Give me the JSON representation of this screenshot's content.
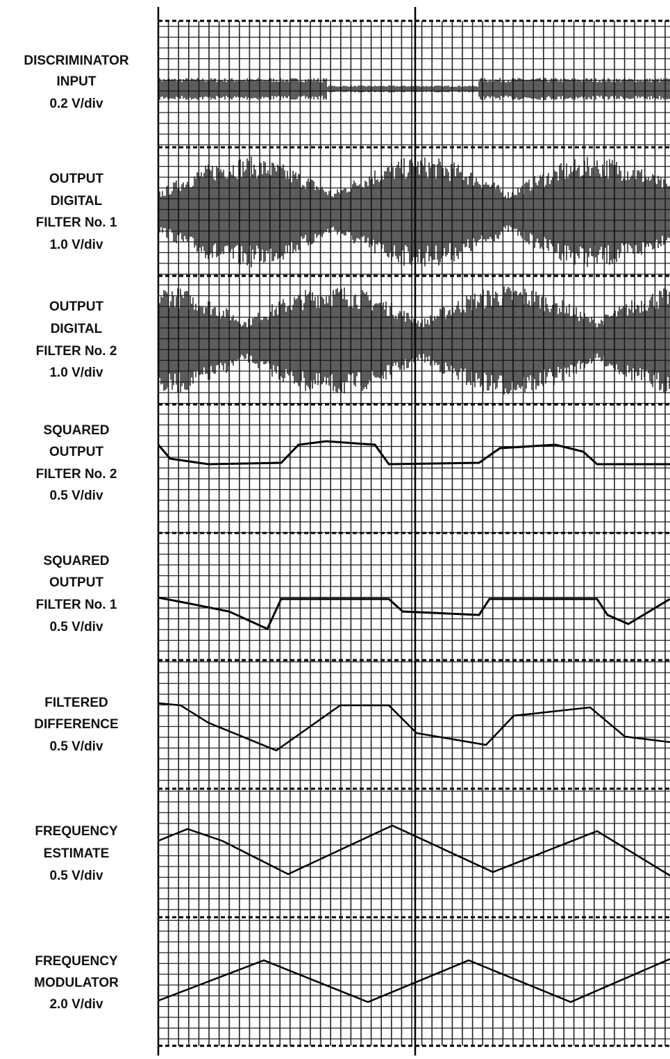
{
  "channels": [
    {
      "label": [
        "DISCRIMINATOR",
        "INPUT"
      ],
      "scale": "0.2 V/div"
    },
    {
      "label": [
        "OUTPUT",
        "DIGITAL",
        "FILTER No. 1"
      ],
      "scale": "1.0 V/div"
    },
    {
      "label": [
        "OUTPUT",
        "DIGITAL",
        "FILTER No. 2"
      ],
      "scale": "1.0 V/div"
    },
    {
      "label": [
        "SQUARED",
        "OUTPUT",
        "FILTER No. 2"
      ],
      "scale": "0.5 V/div"
    },
    {
      "label": [
        "SQUARED",
        "OUTPUT",
        "FILTER No. 1"
      ],
      "scale": "0.5 V/div"
    },
    {
      "label": [
        "FILTERED",
        "DIFFERENCE"
      ],
      "scale": "0.5 V/div"
    },
    {
      "label": [
        "FREQUENCY",
        "ESTIMATE"
      ],
      "scale": "0.5 V/div"
    },
    {
      "label": [
        "FREQUENCY",
        "MODULATOR"
      ],
      "scale": "2.0 V/div"
    }
  ]
}
